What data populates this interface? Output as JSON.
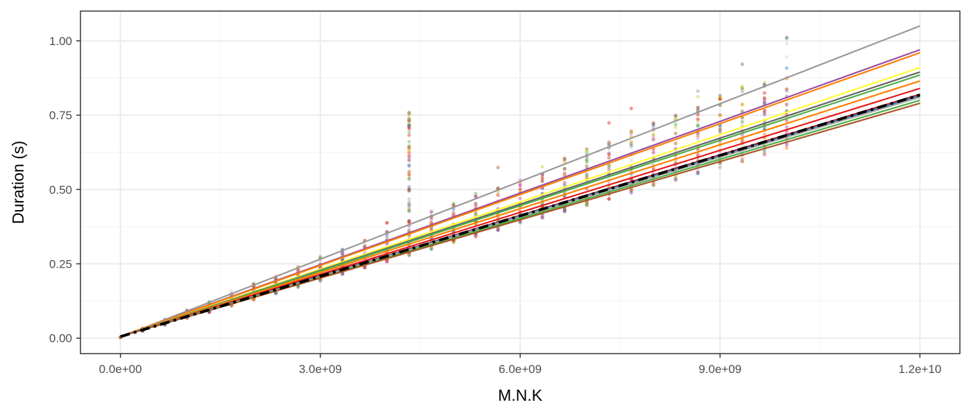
{
  "chart_data": {
    "type": "scatter",
    "title": "",
    "xlabel": "M.N.K",
    "ylabel": "Duration (s)",
    "xlim": [
      -600000000,
      12600000000
    ],
    "ylim": [
      -0.052,
      1.1
    ],
    "x_ticks": [
      {
        "value": 0,
        "label": "0.0e+00"
      },
      {
        "value": 3000000000,
        "label": "3.0e+09"
      },
      {
        "value": 6000000000,
        "label": "6.0e+09"
      },
      {
        "value": 9000000000,
        "label": "9.0e+09"
      },
      {
        "value": 12000000000,
        "label": "1.2e+10"
      }
    ],
    "y_ticks": [
      {
        "value": 0,
        "label": "0.00"
      },
      {
        "value": 0.25,
        "label": "0.25"
      },
      {
        "value": 0.5,
        "label": "0.50"
      },
      {
        "value": 0.75,
        "label": "0.75"
      },
      {
        "value": 1.0,
        "label": "1.00"
      }
    ],
    "grid": true,
    "legend": "none",
    "x_positions": [
      0,
      333000000,
      667000000,
      1000000000,
      1333000000,
      1667000000,
      2000000000,
      2333000000,
      2667000000,
      3000000000,
      3333000000,
      3667000000,
      4000000000,
      4333000000,
      4667000000,
      5000000000,
      5333000000,
      5667000000,
      6000000000,
      6333000000,
      6667000000,
      7000000000,
      7333000000,
      7667000000,
      8000000000,
      8333000000,
      8667000000,
      9000000000,
      9333000000,
      9667000000,
      10000000000
    ],
    "outlier_x": 4333000000,
    "outlier_y_range": [
      0.28,
      0.77
    ],
    "points_note_series_slopes_used_for_clusters": true,
    "fit_lines": [
      {
        "color": "#999999",
        "x": [
          0,
          12000000000
        ],
        "y": [
          0.004,
          1.05
        ]
      },
      {
        "color": "#984ea3",
        "x": [
          0,
          12000000000
        ],
        "y": [
          0.006,
          0.97
        ]
      },
      {
        "color": "#ff7f00",
        "x": [
          0,
          12000000000
        ],
        "y": [
          0.006,
          0.96
        ]
      },
      {
        "color": "#ffff33",
        "x": [
          0,
          12000000000
        ],
        "y": [
          0.006,
          0.91
        ]
      },
      {
        "color": "#666666",
        "x": [
          0,
          12000000000
        ],
        "y": [
          0.006,
          0.895
        ]
      },
      {
        "color": "#4daf4a",
        "x": [
          0,
          12000000000
        ],
        "y": [
          0.006,
          0.885
        ]
      },
      {
        "color": "#ff7f00",
        "x": [
          0,
          12000000000
        ],
        "y": [
          0.006,
          0.865
        ]
      },
      {
        "color": "#e41a1c",
        "x": [
          0,
          12000000000
        ],
        "y": [
          0.006,
          0.84
        ]
      },
      {
        "color": "#b2182b",
        "x": [
          0,
          12000000000
        ],
        "y": [
          0.006,
          0.82
        ]
      },
      {
        "color": "#377eb8",
        "x": [
          0,
          12000000000
        ],
        "y": [
          0.006,
          0.815
        ]
      },
      {
        "color": "#a6a6a6",
        "x": [
          0,
          12000000000
        ],
        "y": [
          0.006,
          0.81
        ]
      },
      {
        "color": "#4daf4a",
        "x": [
          0,
          12000000000
        ],
        "y": [
          0.006,
          0.8
        ]
      },
      {
        "color": "#a65628",
        "x": [
          0,
          12000000000
        ],
        "y": [
          0.006,
          0.79
        ]
      }
    ],
    "reference_line": {
      "color": "#000000",
      "style": "dashed",
      "x": [
        0,
        12000000000
      ],
      "y": [
        0.005,
        0.818
      ]
    },
    "point_colors": [
      "#aaaaaa",
      "#e41a1c",
      "#377eb8",
      "#4daf4a",
      "#984ea3",
      "#ff7f00",
      "#cccc33",
      "#a65628",
      "#f781bf",
      "#999999"
    ]
  }
}
